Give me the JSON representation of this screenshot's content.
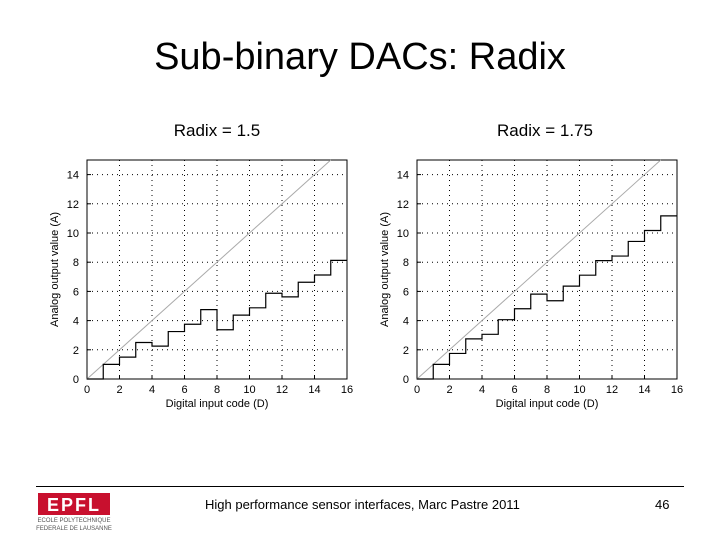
{
  "slide": {
    "title": "Sub-binary DACs: Radix",
    "footer_text": "High performance sensor interfaces, Marc Pastre 2011",
    "page_number": "46",
    "logo": {
      "name": "EPFL",
      "lines": [
        "ECOLE POLYTECHNIQUE",
        "FEDERALE DE LAUSANNE"
      ],
      "color": "#c8102e"
    }
  },
  "chart_data": [
    {
      "type": "line",
      "title": "Radix = 1.5",
      "xlabel": "Digital input code (D)",
      "ylabel": "Analog output value (A)",
      "xlim": [
        0,
        16
      ],
      "ylim": [
        0,
        15
      ],
      "xticks": [
        "0",
        "2",
        "4",
        "6",
        "8",
        "10",
        "12",
        "14",
        "16"
      ],
      "yticks": [
        "0",
        "2",
        "4",
        "6",
        "8",
        "10",
        "12",
        "14"
      ],
      "grid": true,
      "series": [
        {
          "style": "ideal",
          "color": "#aaaaaa",
          "x": [
            0,
            16
          ],
          "y": [
            0,
            16
          ]
        },
        {
          "style": "step",
          "color": "#000000",
          "x": [
            0,
            1,
            2,
            3,
            4,
            5,
            6,
            7,
            8,
            9,
            10,
            11,
            12,
            13,
            14,
            15,
            16
          ],
          "y": [
            0,
            1,
            1.5,
            2.5,
            2.25,
            3.25,
            3.75,
            4.75,
            3.375,
            4.375,
            4.875,
            5.875,
            5.625,
            6.625,
            7.125,
            8.125,
            8.125
          ]
        }
      ]
    },
    {
      "type": "line",
      "title": "Radix = 1.75",
      "xlabel": "Digital input code (D)",
      "ylabel": "Analog output value (A)",
      "xlim": [
        0,
        16
      ],
      "ylim": [
        0,
        15
      ],
      "xticks": [
        "0",
        "2",
        "4",
        "6",
        "8",
        "10",
        "12",
        "14",
        "16"
      ],
      "yticks": [
        "0",
        "2",
        "4",
        "6",
        "8",
        "10",
        "12",
        "14"
      ],
      "grid": true,
      "series": [
        {
          "style": "ideal",
          "color": "#aaaaaa",
          "x": [
            0,
            16
          ],
          "y": [
            0,
            16
          ]
        },
        {
          "style": "step",
          "color": "#000000",
          "x": [
            0,
            1,
            2,
            3,
            4,
            5,
            6,
            7,
            8,
            9,
            10,
            11,
            12,
            13,
            14,
            15,
            16
          ],
          "y": [
            0,
            1,
            1.75,
            2.75,
            3.0625,
            4.0625,
            4.8125,
            5.8125,
            5.359,
            6.359,
            7.109,
            8.109,
            8.422,
            9.422,
            10.172,
            11.172,
            11.172
          ]
        }
      ]
    }
  ]
}
